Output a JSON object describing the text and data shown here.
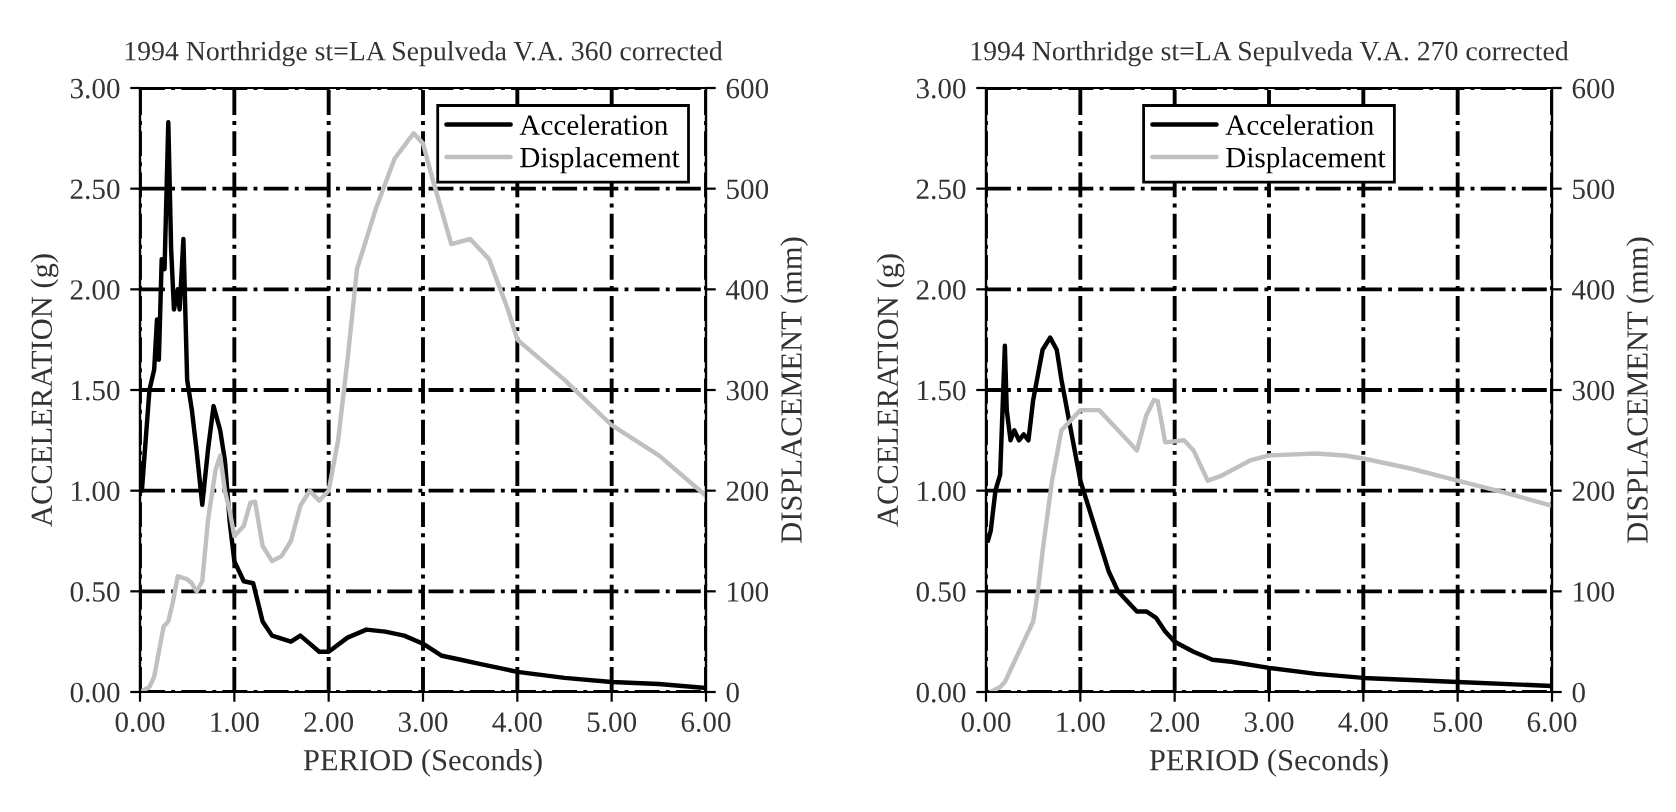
{
  "chart_data": [
    {
      "type": "line",
      "title": "1994 Northridge st=LA Sepulveda V.A. 360 corrected",
      "xlabel": "PERIOD (Seconds)",
      "ylabel": "ACCELERATION (g)",
      "y2label": "DISPLACEMENT (mm)",
      "xlim": [
        0,
        6
      ],
      "xticks": [
        {
          "value": 0,
          "label": "0.00"
        },
        {
          "value": 1,
          "label": "1.00"
        },
        {
          "value": 2,
          "label": "2.00"
        },
        {
          "value": 3,
          "label": "3.00"
        },
        {
          "value": 4,
          "label": "4.00"
        },
        {
          "value": 5,
          "label": "5.00"
        },
        {
          "value": 6,
          "label": "6.00"
        }
      ],
      "ylim": [
        0,
        3
      ],
      "yticks": [
        {
          "value": 0,
          "label": "0.00"
        },
        {
          "value": 0.5,
          "label": "0.50"
        },
        {
          "value": 1,
          "label": "1.00"
        },
        {
          "value": 1.5,
          "label": "1.50"
        },
        {
          "value": 2,
          "label": "2.00"
        },
        {
          "value": 2.5,
          "label": "2.50"
        },
        {
          "value": 3,
          "label": "3.00"
        }
      ],
      "y2lim": [
        0,
        600
      ],
      "y2ticks": [
        0,
        100,
        200,
        300,
        400,
        500,
        600
      ],
      "grid": true,
      "legend": "top right",
      "series": [
        {
          "name": "Acceleration",
          "color": "#000000",
          "x": [
            0.02,
            0.1,
            0.15,
            0.18,
            0.2,
            0.23,
            0.26,
            0.3,
            0.33,
            0.36,
            0.4,
            0.42,
            0.46,
            0.5,
            0.55,
            0.6,
            0.66,
            0.72,
            0.78,
            0.85,
            0.9,
            0.95,
            1.0,
            1.1,
            1.2,
            1.3,
            1.4,
            1.6,
            1.7,
            1.8,
            1.9,
            2.0,
            2.2,
            2.4,
            2.6,
            2.8,
            3.0,
            3.2,
            3.4,
            3.6,
            4.0,
            4.5,
            5.0,
            5.5,
            6.0
          ],
          "values": [
            1.0,
            1.5,
            1.6,
            1.85,
            1.65,
            2.15,
            2.1,
            2.83,
            2.2,
            1.9,
            2.0,
            1.9,
            2.25,
            1.55,
            1.4,
            1.2,
            0.93,
            1.2,
            1.42,
            1.3,
            1.15,
            0.85,
            0.65,
            0.55,
            0.54,
            0.35,
            0.28,
            0.25,
            0.28,
            0.24,
            0.2,
            0.2,
            0.27,
            0.31,
            0.3,
            0.28,
            0.24,
            0.18,
            0.16,
            0.14,
            0.1,
            0.07,
            0.05,
            0.04,
            0.02
          ]
        },
        {
          "name": "Displacement",
          "color": "#c0c0c0",
          "axis": "y2",
          "x": [
            0.0,
            0.1,
            0.15,
            0.2,
            0.25,
            0.3,
            0.35,
            0.4,
            0.5,
            0.55,
            0.6,
            0.66,
            0.72,
            0.8,
            0.85,
            0.9,
            0.95,
            1.0,
            1.1,
            1.17,
            1.22,
            1.3,
            1.4,
            1.5,
            1.6,
            1.7,
            1.8,
            1.9,
            2.0,
            2.1,
            2.2,
            2.3,
            2.5,
            2.7,
            2.9,
            3.0,
            3.1,
            3.3,
            3.5,
            3.7,
            3.9,
            4.0,
            4.5,
            5.0,
            5.5,
            6.0
          ],
          "values": [
            0,
            5,
            15,
            40,
            65,
            70,
            90,
            115,
            112,
            108,
            100,
            110,
            170,
            220,
            235,
            200,
            180,
            155,
            165,
            188,
            189,
            145,
            130,
            135,
            150,
            185,
            200,
            190,
            200,
            250,
            330,
            420,
            480,
            530,
            555,
            545,
            510,
            445,
            450,
            430,
            380,
            350,
            310,
            265,
            235,
            195
          ]
        }
      ]
    },
    {
      "type": "line",
      "title": "1994 Northridge st=LA Sepulveda V.A. 270 corrected",
      "xlabel": "PERIOD (Seconds)",
      "ylabel": "ACCELERATION (g)",
      "y2label": "DISPLACEMENT (mm)",
      "xlim": [
        0,
        6
      ],
      "xticks": [
        {
          "value": 0,
          "label": "0.00"
        },
        {
          "value": 1,
          "label": "1.00"
        },
        {
          "value": 2,
          "label": "2.00"
        },
        {
          "value": 3,
          "label": "3.00"
        },
        {
          "value": 4,
          "label": "4.00"
        },
        {
          "value": 5,
          "label": "5.00"
        },
        {
          "value": 6,
          "label": "6.00"
        }
      ],
      "ylim": [
        0,
        3
      ],
      "yticks": [
        {
          "value": 0,
          "label": "0.00"
        },
        {
          "value": 0.5,
          "label": "0.50"
        },
        {
          "value": 1,
          "label": "1.00"
        },
        {
          "value": 1.5,
          "label": "1.50"
        },
        {
          "value": 2,
          "label": "2.00"
        },
        {
          "value": 2.5,
          "label": "2.50"
        },
        {
          "value": 3,
          "label": "3.00"
        }
      ],
      "y2lim": [
        0,
        600
      ],
      "y2ticks": [
        0,
        100,
        200,
        300,
        400,
        500,
        600
      ],
      "grid": true,
      "legend": "top",
      "series": [
        {
          "name": "Acceleration",
          "color": "#000000",
          "x": [
            0.02,
            0.05,
            0.1,
            0.15,
            0.2,
            0.22,
            0.26,
            0.3,
            0.35,
            0.4,
            0.45,
            0.5,
            0.6,
            0.68,
            0.75,
            0.8,
            0.9,
            1.0,
            1.1,
            1.2,
            1.3,
            1.4,
            1.5,
            1.6,
            1.7,
            1.8,
            1.9,
            2.0,
            2.2,
            2.4,
            2.6,
            3.0,
            3.5,
            4.0,
            5.0,
            6.0
          ],
          "values": [
            0.75,
            0.8,
            1.0,
            1.08,
            1.72,
            1.4,
            1.25,
            1.3,
            1.25,
            1.28,
            1.25,
            1.45,
            1.7,
            1.76,
            1.7,
            1.55,
            1.3,
            1.05,
            0.9,
            0.75,
            0.6,
            0.5,
            0.45,
            0.4,
            0.4,
            0.37,
            0.3,
            0.25,
            0.2,
            0.16,
            0.15,
            0.12,
            0.09,
            0.07,
            0.05,
            0.03
          ]
        },
        {
          "name": "Displacement",
          "color": "#c0c0c0",
          "axis": "y2",
          "x": [
            0.05,
            0.15,
            0.2,
            0.3,
            0.4,
            0.5,
            0.55,
            0.6,
            0.7,
            0.8,
            0.9,
            1.0,
            1.2,
            1.4,
            1.6,
            1.7,
            1.78,
            1.82,
            1.9,
            2.1,
            2.2,
            2.35,
            2.5,
            2.8,
            3.0,
            3.5,
            3.8,
            4.0,
            4.5,
            5.0,
            5.5,
            6.0
          ],
          "values": [
            0,
            5,
            10,
            30,
            50,
            70,
            100,
            140,
            210,
            260,
            270,
            280,
            280,
            260,
            240,
            275,
            290,
            289,
            248,
            250,
            240,
            210,
            215,
            230,
            235,
            237,
            235,
            232,
            222,
            210,
            198,
            185
          ]
        }
      ]
    }
  ]
}
